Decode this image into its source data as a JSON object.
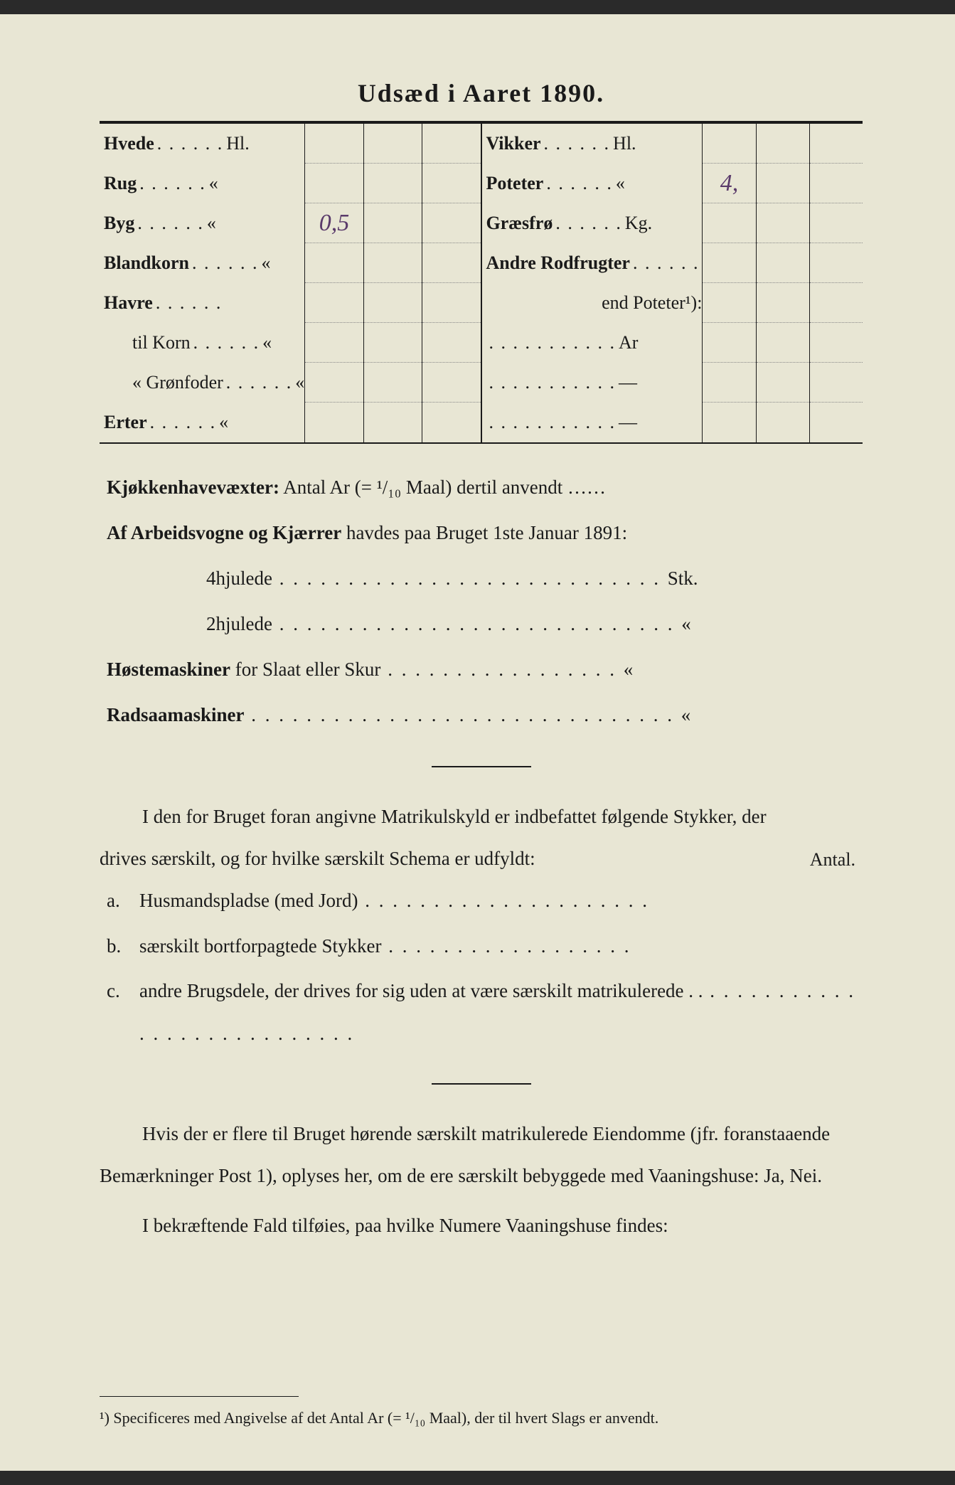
{
  "title": "Udsæd i Aaret 1890.",
  "colors": {
    "paper": "#e8e6d4",
    "ink": "#1a1a1a",
    "handwriting": "#5a3a6a"
  },
  "table": {
    "left_rows": [
      {
        "label": "Hvede",
        "unit": "Hl.",
        "value": ""
      },
      {
        "label": "Rug",
        "unit": "«",
        "value": ""
      },
      {
        "label": "Byg",
        "unit": "«",
        "value": "0,5"
      },
      {
        "label": "Blandkorn",
        "unit": "«",
        "value": ""
      },
      {
        "label": "Havre",
        "unit": "",
        "value": ""
      },
      {
        "label": "til Korn",
        "unit": "«",
        "value": "",
        "indent": true,
        "nobold": true
      },
      {
        "label": "«  Grønfoder",
        "unit": "«",
        "value": "",
        "indent": true,
        "nobold": true
      },
      {
        "label": "Erter",
        "unit": "«",
        "value": ""
      }
    ],
    "right_rows": [
      {
        "label": "Vikker",
        "unit": "Hl.",
        "value": ""
      },
      {
        "label": "Poteter",
        "unit": "«",
        "value": "4,"
      },
      {
        "label": "Græsfrø",
        "unit": "Kg.",
        "value": ""
      },
      {
        "label": "Andre Rodfrugter",
        "unit": "",
        "value": ""
      },
      {
        "label": "end Poteter¹):",
        "unit": "",
        "value": "",
        "nobold": true,
        "right": true
      },
      {
        "label": "",
        "unit": "Ar",
        "value": "",
        "dotsline": true
      },
      {
        "label": "",
        "unit": "—",
        "value": "",
        "dotsline": true
      },
      {
        "label": "",
        "unit": "—",
        "value": "",
        "dotsline": true
      }
    ],
    "num_value_columns": 3
  },
  "body": {
    "line1_bold": "Kjøkkenhavevæxter:",
    "line1_rest": " Antal Ar (= ¹/₁₀ Maal) dertil anvendt ……",
    "line2_bold": "Af Arbeidsvogne og Kjærrer",
    "line2_rest": " havdes paa Bruget 1ste Januar 1891:",
    "line3": "4hjulede",
    "line3_tail": "Stk.",
    "line4": "2hjulede",
    "line4_tail": "«",
    "line5_bold": "Høstemaskiner",
    "line5_rest": " for Slaat eller Skur",
    "line5_tail": "«",
    "line6_bold": "Radsaamaskiner",
    "line6_tail": "«"
  },
  "middle_para": {
    "p1": "I den for Bruget foran angivne Matrikulskyld er indbefattet følgende Stykker, der drives særskilt, og for hvilke særskilt Schema er udfyldt:",
    "antal": "Antal."
  },
  "list": {
    "a_bold": "Husmandspladse (med Jord)",
    "b_bold": "særskilt bortforpagtede Stykker",
    "c_bold": "andre Brugsdele,",
    "c_rest": " der drives for sig uden at være særskilt matrikulerede . ."
  },
  "lower_para": {
    "p1": "Hvis der er flere til Bruget hørende særskilt matrikulerede Eiendomme (jfr. foranstaaende Bemærkninger Post 1), oplyses her, om de ere særskilt bebyggede med ",
    "p1_bold": "Vaaningshuse:",
    "p1_tail": " Ja, Nei.",
    "p2a": "I bekræftende Fald tilføies, paa ",
    "p2_bold": "hvilke Numere",
    "p2b": " Vaaningshuse findes:"
  },
  "footnote": {
    "text": "¹) Specificeres med Angivelse af det Antal Ar (= ¹/₁₀ Maal), der til hvert Slags er anvendt."
  }
}
